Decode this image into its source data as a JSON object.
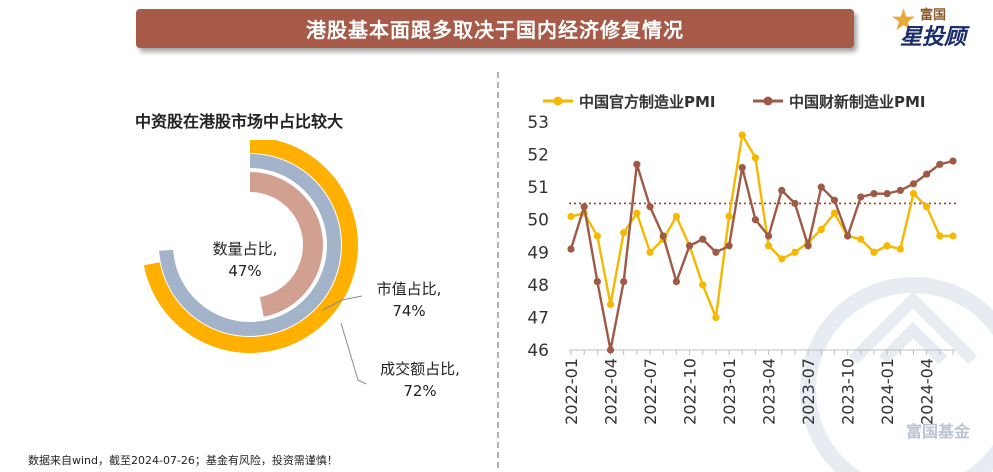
{
  "banner": {
    "title": "港股基本面跟多取决于国内经济修复情况"
  },
  "logo": {
    "top": "富国",
    "main": "星投顾",
    "watermark": "富国基金"
  },
  "left_panel": {
    "title": "中资股在港股市场中占比较大",
    "footnote": "数据来自wind，截至2024-07-26；基金有风险，投资需谨慎！"
  },
  "colors": {
    "banner": "#a65a47",
    "orange": "#ffb000",
    "blue_gray": "#a3b3c9",
    "pink_brown": "#d2a090",
    "official_line": "#f5b800",
    "caixin_line": "#9e5a46",
    "reference_line": "#a0422a"
  },
  "chart_data": [
    {
      "type": "pie",
      "variant": "radial-rings",
      "title": "中资股在港股市场中占比较大",
      "series": [
        {
          "name": "数量占比",
          "label": "数量占比,",
          "value_label": "47%",
          "value": 47,
          "color": "#d2a090"
        },
        {
          "name": "市值占比",
          "label": "市值占比,",
          "value_label": "74%",
          "value": 74,
          "color": "#a3b3c9"
        },
        {
          "name": "成交额占比",
          "label": "成交额占比,",
          "value_label": "72%",
          "value": 72,
          "color": "#ffb000"
        }
      ]
    },
    {
      "type": "line",
      "title": "",
      "xlabel": "",
      "ylabel": "",
      "ylim": [
        46,
        53
      ],
      "yticks": [
        "46",
        "47",
        "48",
        "49",
        "50",
        "51",
        "52",
        "53"
      ],
      "x": [
        "2022-01",
        "2022-02",
        "2022-03",
        "2022-04",
        "2022-05",
        "2022-06",
        "2022-07",
        "2022-08",
        "2022-09",
        "2022-10",
        "2022-11",
        "2022-12",
        "2023-01",
        "2023-02",
        "2023-03",
        "2023-04",
        "2023-05",
        "2023-06",
        "2023-07",
        "2023-08",
        "2023-09",
        "2023-10",
        "2023-11",
        "2023-12",
        "2024-01",
        "2024-02",
        "2024-03",
        "2024-04",
        "2024-05",
        "2024-06"
      ],
      "xtick_labels": [
        "2022-01",
        "2022-04",
        "2022-07",
        "2022-10",
        "2023-01",
        "2023-04",
        "2023-07",
        "2023-10",
        "2024-01",
        "2024-04"
      ],
      "legend_position": "top",
      "reference_line": {
        "value": 50.5,
        "style": "dotted"
      },
      "series": [
        {
          "name": "中国官方制造业PMI",
          "color": "#f5b800",
          "values": [
            50.1,
            50.2,
            49.5,
            47.4,
            49.6,
            50.2,
            49.0,
            49.4,
            50.1,
            49.2,
            48.0,
            47.0,
            50.1,
            52.6,
            51.9,
            49.2,
            48.8,
            49.0,
            49.3,
            49.7,
            50.2,
            49.5,
            49.4,
            49.0,
            49.2,
            49.1,
            50.8,
            50.4,
            49.5,
            49.5
          ]
        },
        {
          "name": "中国财新制造业PMI",
          "color": "#9e5a46",
          "values": [
            49.1,
            50.4,
            48.1,
            46.0,
            48.1,
            51.7,
            50.4,
            49.5,
            48.1,
            49.2,
            49.4,
            49.0,
            49.2,
            51.6,
            50.0,
            49.5,
            50.9,
            50.5,
            49.2,
            51.0,
            50.6,
            49.5,
            50.7,
            50.8,
            50.8,
            50.9,
            51.1,
            51.4,
            51.7,
            51.8
          ]
        }
      ]
    }
  ]
}
